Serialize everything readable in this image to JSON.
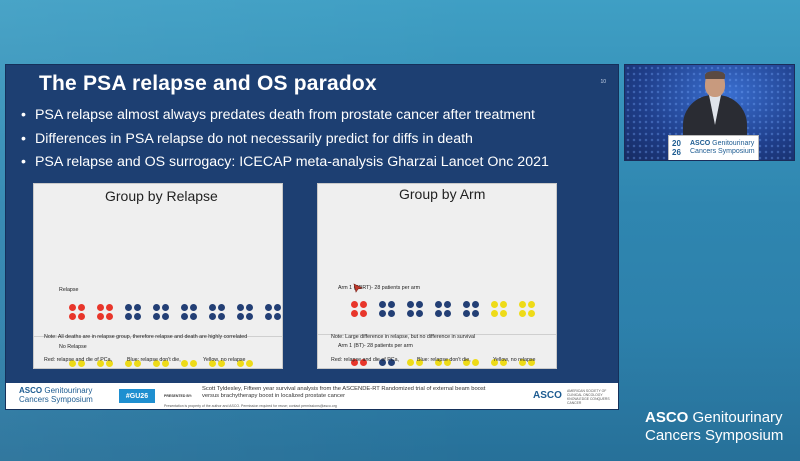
{
  "slide": {
    "title": "The PSA relapse and OS paradox",
    "slide_number": "10",
    "bullets": [
      "PSA relapse almost always predates death from prostate cancer after treatment",
      "Differences in PSA relapse do not necessarily predict for diffs in death",
      "PSA relapse and OS surrogacy:  ICECAP meta-analysis Gharzai Lancet Onc 2021"
    ],
    "left_panel": {
      "title": "Group by Relapse",
      "relapse_label": "Relapse",
      "no_relapse_label": "No Relapse",
      "note": "Note:  All deaths are in relapse group, therefore relapse and death are highly correlated",
      "legend_red": "Red:  relapse and die of PCa,",
      "legend_blue": "Blue: relapse don't die,",
      "legend_yellow": "Yellow, no relapse"
    },
    "right_panel": {
      "title": "Group by Arm",
      "arm1_label": "Arm 1 (EBRT)- 28 patients per arm",
      "arm2_label": "Arm 1 (BT)- 28 patients per arm",
      "note": "Note:  Large difference in relapse,  but no difference in survival",
      "legend_red": "Red:  relapse and die of PCa,",
      "legend_blue": "Blue: relapse don't die,",
      "legend_yellow": "Yellow, no relapse"
    },
    "footer": {
      "asco_brand": "ASCO",
      "asco_line1_rest": " Genitourinary",
      "asco_line2": "Cancers Symposium",
      "hashtag": "#GU26",
      "presented_by": "PRESENTED BY:",
      "citation": "Scott Tyldesley, Fifteen year survival analysis from the ASCENDE-RT Randomized trial of external beam boost versus brachytherapy boost in localized prostate cancer",
      "disclaimer": "Presentation is property of the author and ASCO. Permission required for reuse; contact permissions@asco.org",
      "asco_logo": "ASCO",
      "asco_logo_sub": "AMERICAN SOCIETY OF CLINICAL ONCOLOGY KNOWLEDGE CONQUERS CANCER"
    }
  },
  "video": {
    "podium_year_top": "20",
    "podium_year_bottom": "26",
    "podium_brand": "ASCO",
    "podium_line1_rest": " Genitourinary",
    "podium_line2": "Cancers Symposium"
  },
  "branding": {
    "brand": "ASCO",
    "line1_rest": " Genitourinary",
    "line2": "Cancers Symposium"
  },
  "colors": {
    "red": "#e8362b",
    "blue": "#233f75",
    "yellow": "#eedb18",
    "slide_bg": "#1d3f72"
  }
}
